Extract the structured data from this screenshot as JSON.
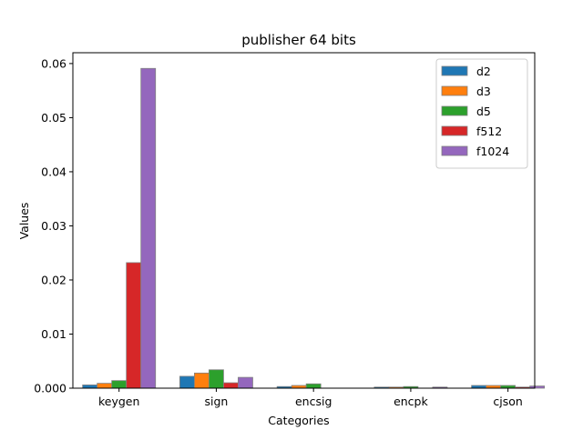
{
  "chart_data": {
    "type": "bar",
    "title": "publisher 64 bits",
    "xlabel": "Categories",
    "ylabel": "Values",
    "categories": [
      "keygen",
      "sign",
      "encsig",
      "encpk",
      "cjson"
    ],
    "ylim": [
      0,
      0.062
    ],
    "yticks": [
      0.0,
      0.01,
      0.02,
      0.03,
      0.04,
      0.05,
      0.06
    ],
    "ytick_labels": [
      "0.000",
      "0.01",
      "0.02",
      "0.03",
      "0.04",
      "0.05",
      "0.06"
    ],
    "grid": false,
    "legend_position": "top-right",
    "series": [
      {
        "name": "d2",
        "color": "#1f77b4",
        "values": [
          0.0006,
          0.0022,
          0.0003,
          0.0002,
          0.0005
        ]
      },
      {
        "name": "d3",
        "color": "#ff7f0e",
        "values": [
          0.0009,
          0.0028,
          0.0005,
          0.0002,
          0.0005
        ]
      },
      {
        "name": "d5",
        "color": "#2ca02c",
        "values": [
          0.0014,
          0.0034,
          0.0008,
          0.0003,
          0.0005
        ]
      },
      {
        "name": "f512",
        "color": "#d62728",
        "values": [
          0.0232,
          0.001,
          0.0,
          0.0,
          0.0002
        ]
      },
      {
        "name": "f1024",
        "color": "#9467bd",
        "values": [
          0.0591,
          0.002,
          0.0,
          0.0002,
          0.0004
        ]
      }
    ]
  }
}
